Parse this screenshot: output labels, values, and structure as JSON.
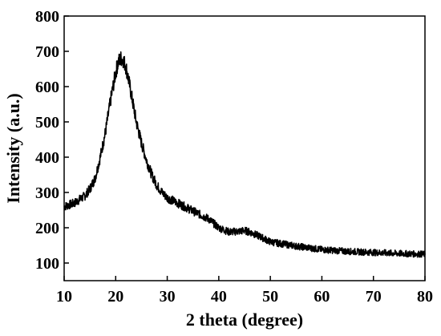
{
  "chart_data": {
    "type": "line",
    "title": "",
    "xlabel": "2 theta (degree)",
    "ylabel": "Intensity (a.u.)",
    "xlim": [
      10,
      80
    ],
    "ylim": [
      50,
      800
    ],
    "xticks": [
      10,
      20,
      30,
      40,
      50,
      60,
      70,
      80
    ],
    "yticks": [
      100,
      200,
      300,
      400,
      500,
      600,
      700,
      800
    ],
    "grid": false,
    "line_color": "#000000",
    "series": [
      {
        "x": [
          10,
          12,
          14,
          15,
          16,
          17,
          18,
          19,
          20,
          20.5,
          21,
          21.5,
          22,
          22.5,
          23,
          24,
          25,
          26,
          27,
          28,
          29,
          30,
          32,
          34,
          36,
          38,
          40,
          42,
          44,
          45,
          46,
          48,
          50,
          55,
          60,
          65,
          70,
          75,
          80
        ],
        "y": [
          260,
          270,
          290,
          310,
          340,
          400,
          470,
          560,
          640,
          670,
          680,
          675,
          655,
          620,
          580,
          500,
          440,
          390,
          350,
          320,
          300,
          285,
          270,
          255,
          240,
          225,
          200,
          188,
          190,
          192,
          188,
          175,
          160,
          148,
          138,
          133,
          130,
          127,
          125
        ]
      }
    ]
  }
}
